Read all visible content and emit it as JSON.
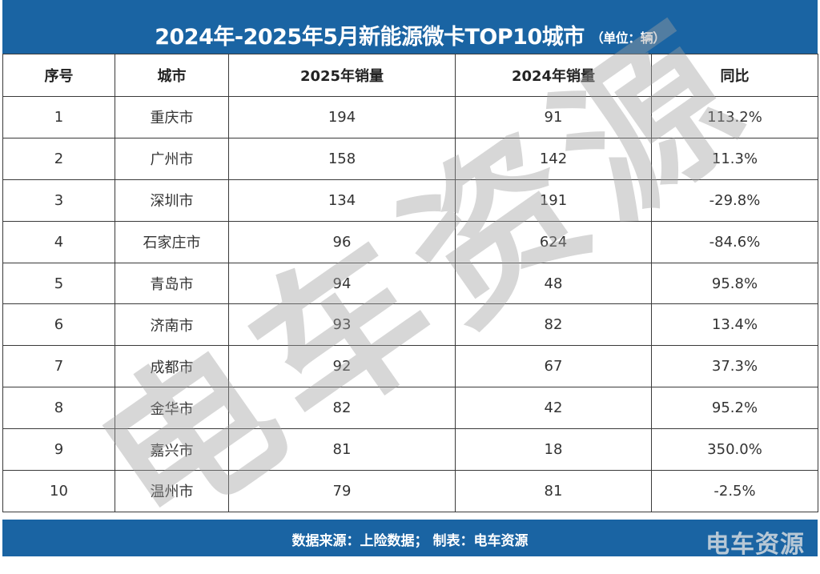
{
  "title": {
    "main": "2024年-2025年5月新能源微卡TOP10城市",
    "unit": "（单位：辆）"
  },
  "colors": {
    "header_bg": "#1a64a3",
    "negative": "#f0414b",
    "text": "#333333"
  },
  "table": {
    "headers": [
      "序号",
      "城市",
      "2025年销量",
      "2024年销量",
      "同比"
    ],
    "rows": [
      {
        "rank": "1",
        "city": "重庆市",
        "sales_2025": "194",
        "sales_2024": "91",
        "yoy": "113.2%",
        "negative": false
      },
      {
        "rank": "2",
        "city": "广州市",
        "sales_2025": "158",
        "sales_2024": "142",
        "yoy": "11.3%",
        "negative": false
      },
      {
        "rank": "3",
        "city": "深圳市",
        "sales_2025": "134",
        "sales_2024": "191",
        "yoy": "-29.8%",
        "negative": true
      },
      {
        "rank": "4",
        "city": "石家庄市",
        "sales_2025": "96",
        "sales_2024": "624",
        "yoy": "-84.6%",
        "negative": true
      },
      {
        "rank": "5",
        "city": "青岛市",
        "sales_2025": "94",
        "sales_2024": "48",
        "yoy": "95.8%",
        "negative": false
      },
      {
        "rank": "6",
        "city": "济南市",
        "sales_2025": "93",
        "sales_2024": "82",
        "yoy": "13.4%",
        "negative": false
      },
      {
        "rank": "7",
        "city": "成都市",
        "sales_2025": "92",
        "sales_2024": "67",
        "yoy": "37.3%",
        "negative": false
      },
      {
        "rank": "8",
        "city": "金华市",
        "sales_2025": "82",
        "sales_2024": "42",
        "yoy": "95.2%",
        "negative": false
      },
      {
        "rank": "9",
        "city": "嘉兴市",
        "sales_2025": "81",
        "sales_2024": "18",
        "yoy": "350.0%",
        "negative": false
      },
      {
        "rank": "10",
        "city": "温州市",
        "sales_2025": "79",
        "sales_2024": "81",
        "yoy": "-2.5%",
        "negative": true
      }
    ]
  },
  "footer": {
    "source": "数据来源：上险数据；  制表：电车资源",
    "logo": "电车资源"
  },
  "watermark": {
    "text": [
      "电",
      "车",
      "资",
      "源"
    ]
  }
}
